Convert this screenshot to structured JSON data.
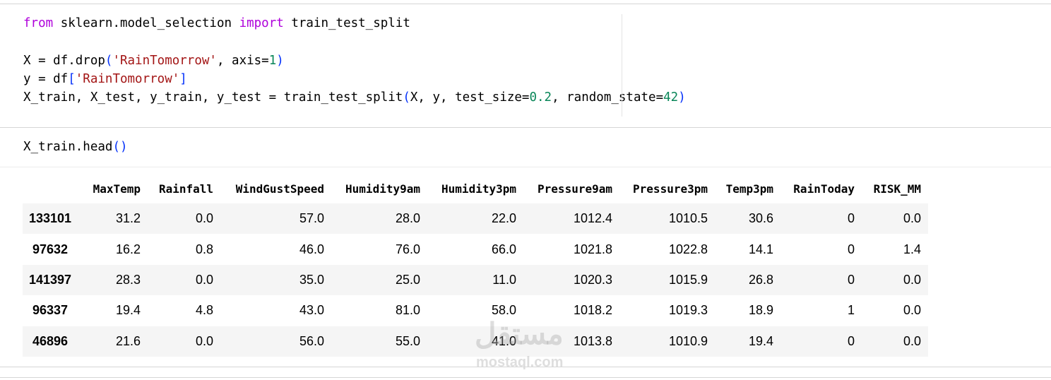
{
  "cells": [
    {
      "lines": [
        {
          "tokens": [
            {
              "text": "from",
              "color": "#af00db"
            },
            {
              "text": " sklearn.model_selection ",
              "color": "#000000"
            },
            {
              "text": "import",
              "color": "#af00db"
            },
            {
              "text": " train_test_split",
              "color": "#000000"
            }
          ]
        },
        {
          "tokens": []
        },
        {
          "tokens": [
            {
              "text": "X = df.drop",
              "color": "#000000"
            },
            {
              "text": "(",
              "color": "#0431fa"
            },
            {
              "text": "'RainTomorrow'",
              "color": "#a31515"
            },
            {
              "text": ", axis=",
              "color": "#000000"
            },
            {
              "text": "1",
              "color": "#098658"
            },
            {
              "text": ")",
              "color": "#0431fa"
            }
          ]
        },
        {
          "tokens": [
            {
              "text": "y = df",
              "color": "#000000"
            },
            {
              "text": "[",
              "color": "#0431fa"
            },
            {
              "text": "'RainTomorrow'",
              "color": "#a31515"
            },
            {
              "text": "]",
              "color": "#0431fa"
            }
          ]
        },
        {
          "tokens": [
            {
              "text": "X_train, X_test, y_train, y_test = train_test_split",
              "color": "#000000"
            },
            {
              "text": "(",
              "color": "#0431fa"
            },
            {
              "text": "X, y, test_size=",
              "color": "#000000"
            },
            {
              "text": "0.2",
              "color": "#098658"
            },
            {
              "text": ", random_state=",
              "color": "#000000"
            },
            {
              "text": "42",
              "color": "#098658"
            },
            {
              "text": ")",
              "color": "#0431fa"
            }
          ]
        }
      ]
    },
    {
      "lines": [
        {
          "tokens": [
            {
              "text": "X_train.head",
              "color": "#000000"
            },
            {
              "text": "()",
              "color": "#0431fa"
            }
          ]
        }
      ]
    }
  ],
  "table": {
    "columns": [
      "MaxTemp",
      "Rainfall",
      "WindGustSpeed",
      "Humidity9am",
      "Humidity3pm",
      "Pressure9am",
      "Pressure3pm",
      "Temp3pm",
      "RainToday",
      "RISK_MM"
    ],
    "index": [
      "133101",
      "97632",
      "141397",
      "96337",
      "46896"
    ],
    "rows": [
      [
        "31.2",
        "0.0",
        "57.0",
        "28.0",
        "22.0",
        "1012.4",
        "1010.5",
        "30.6",
        "0",
        "0.0"
      ],
      [
        "16.2",
        "0.8",
        "46.0",
        "76.0",
        "66.0",
        "1021.8",
        "1022.8",
        "14.1",
        "0",
        "1.4"
      ],
      [
        "28.3",
        "0.0",
        "35.0",
        "25.0",
        "11.0",
        "1020.3",
        "1015.9",
        "26.8",
        "0",
        "0.0"
      ],
      [
        "19.4",
        "4.8",
        "43.0",
        "81.0",
        "58.0",
        "1018.2",
        "1019.3",
        "18.9",
        "1",
        "0.0"
      ],
      [
        "21.6",
        "0.0",
        "56.0",
        "55.0",
        "41.0",
        "1013.8",
        "1010.9",
        "19.4",
        "0",
        "0.0"
      ]
    ]
  },
  "watermark": {
    "logo": "مستقل",
    "text": "mostaql.com"
  }
}
